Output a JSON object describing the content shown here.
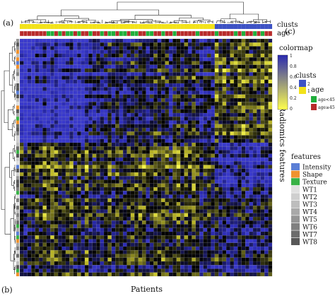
{
  "panel_labels": {
    "a": "(a)",
    "b": "(b)",
    "c": "(c)"
  },
  "row_labels": {
    "clusts": "clusts",
    "age": "age"
  },
  "axis": {
    "x_label": "Patients",
    "y_label": "Radiomics features"
  },
  "colormap_legend": {
    "title": "colormap",
    "ticks": [
      "1",
      "0.8",
      "0.6",
      "0.4",
      "0.2",
      "0"
    ],
    "stops": [
      "#ffff4d",
      "#e8e020",
      "#6a6a14",
      "#000000",
      "#1e1e70",
      "#2a2ab0",
      "#3a3acc"
    ]
  },
  "clusts_legend": {
    "title": "clusts",
    "items": [
      {
        "label": "2",
        "color": "#3d52c4"
      },
      {
        "label": "1",
        "color": "#f2e21a"
      }
    ]
  },
  "age_legend": {
    "title": "age",
    "items": [
      {
        "label": "age<45",
        "color": "#1fae3b"
      },
      {
        "label": "age≥45",
        "color": "#b72a2a"
      }
    ]
  },
  "features_legend": {
    "title": "features",
    "items": [
      {
        "label": "Intensity",
        "color": "#5b7fd6"
      },
      {
        "label": "Shape",
        "color": "#f0922e"
      },
      {
        "label": "Texture",
        "color": "#38b246"
      },
      {
        "label": "WT1",
        "color": "#e0e0e0"
      },
      {
        "label": "WT2",
        "color": "#cfcfcf"
      },
      {
        "label": "WT3",
        "color": "#bdbdbd"
      },
      {
        "label": "WT4",
        "color": "#a9a9a9"
      },
      {
        "label": "WT5",
        "color": "#959595"
      },
      {
        "label": "WT6",
        "color": "#808080"
      },
      {
        "label": "WT7",
        "color": "#6c6c6c"
      },
      {
        "label": "WT8",
        "color": "#585858"
      }
    ]
  },
  "chart_data": {
    "type": "heatmap",
    "xlabel": "Patients",
    "ylabel": "Radiomics features",
    "value_range": [
      0,
      1
    ],
    "n_patients": 66,
    "n_features": 64,
    "clusters": [
      "1",
      "2"
    ],
    "blocks": [
      {
        "patients": [
          0,
          18
        ],
        "features": [
          0,
          28
        ],
        "mean": 0.05
      },
      {
        "patients": [
          18,
          51
        ],
        "features": [
          0,
          28
        ],
        "mean": 0.35
      },
      {
        "patients": [
          51,
          66
        ],
        "features": [
          0,
          28
        ],
        "mean": 0.55
      },
      {
        "patients": [
          0,
          51
        ],
        "features": [
          28,
          40
        ],
        "mean": 0.55
      },
      {
        "patients": [
          51,
          66
        ],
        "features": [
          28,
          40
        ],
        "mean": 0.15
      },
      {
        "patients": [
          0,
          51
        ],
        "features": [
          40,
          64
        ],
        "mean": 0.45
      },
      {
        "patients": [
          51,
          66
        ],
        "features": [
          40,
          64
        ],
        "mean": 0.3
      }
    ]
  }
}
